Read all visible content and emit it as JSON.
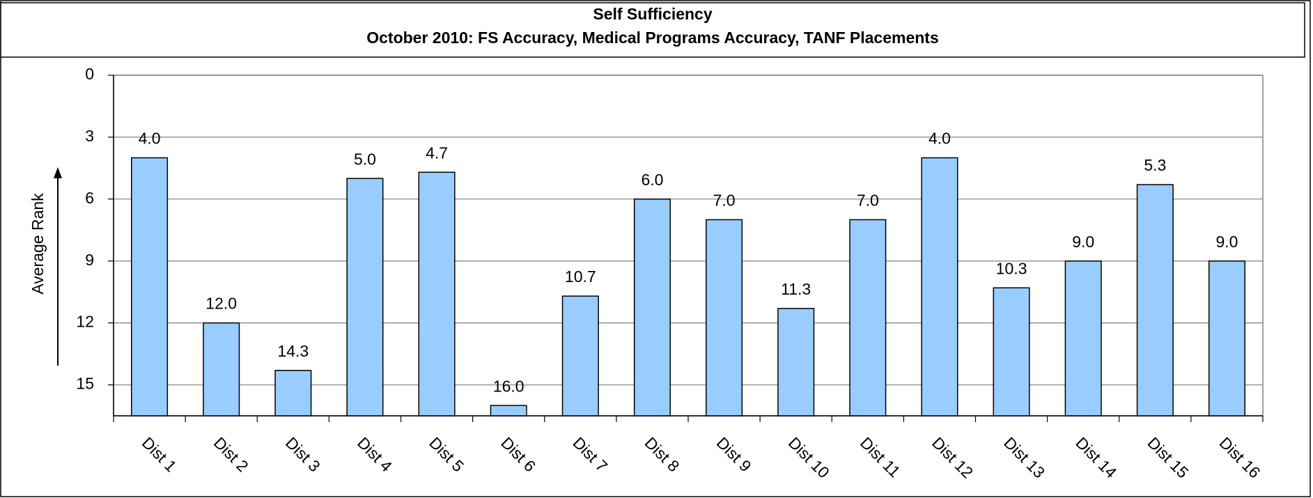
{
  "chart_data": {
    "type": "bar",
    "title": "Self Sufficiency",
    "subtitle": "October 2010: FS Accuracy, Medical Programs Accuracy, TANF Placements",
    "y_label": "Average Rank",
    "categories": [
      "Dist 1",
      "Dist 2",
      "Dist 3",
      "Dist 4",
      "Dist 5",
      "Dist 6",
      "Dist 7",
      "Dist 8",
      "Dist 9",
      "Dist 10",
      "Dist 11",
      "Dist 12",
      "Dist 13",
      "Dist 14",
      "Dist 15",
      "Dist 16"
    ],
    "values": [
      4,
      12,
      14.3,
      5,
      4.7,
      16,
      10.7,
      6,
      7,
      11.3,
      7,
      4,
      10.3,
      9,
      5.3,
      9
    ],
    "value_labels": [
      "4.0",
      "12.0",
      "14.3",
      "5.0",
      "4.7",
      "16.0",
      "10.7",
      "6.0",
      "7.0",
      "11.3",
      "7.0",
      "4.0",
      "10.3",
      "9.0",
      "5.3",
      "9.0"
    ],
    "color": "#99ccff",
    "ylim": [
      16.5,
      0
    ],
    "yticks": [
      0,
      3,
      6,
      9,
      12,
      15
    ],
    "grid": true
  }
}
